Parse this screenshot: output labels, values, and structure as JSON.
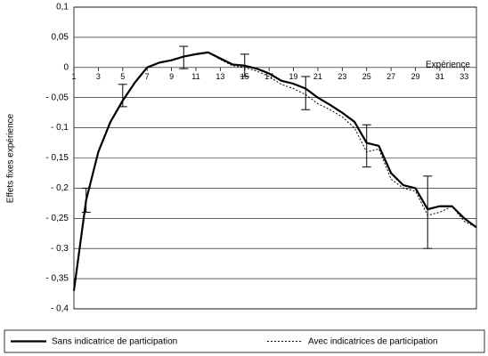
{
  "chart_data": {
    "type": "line",
    "y_label": "Effets fixes expérience",
    "x_label": "Expérience",
    "x": [
      1,
      2,
      3,
      4,
      5,
      6,
      7,
      8,
      9,
      10,
      11,
      12,
      13,
      14,
      15,
      16,
      17,
      18,
      19,
      20,
      21,
      22,
      23,
      24,
      25,
      26,
      27,
      28,
      29,
      30,
      31,
      32,
      33,
      34
    ],
    "series": [
      {
        "name": "Sans indicatrice de participation",
        "color": "#000000",
        "style": "solid",
        "values": [
          -0.37,
          -0.22,
          -0.14,
          -0.09,
          -0.055,
          -0.025,
          0.0,
          0.008,
          0.012,
          0.018,
          0.022,
          0.025,
          0.015,
          0.005,
          0.003,
          -0.002,
          -0.01,
          -0.022,
          -0.027,
          -0.035,
          -0.05,
          -0.062,
          -0.075,
          -0.09,
          -0.125,
          -0.13,
          -0.175,
          -0.195,
          -0.2,
          -0.235,
          -0.23,
          -0.23,
          -0.25,
          -0.265
        ]
      },
      {
        "name": "Avec indicatrices de participation",
        "color": "#000000",
        "style": "dotted",
        "values": [
          -0.37,
          -0.22,
          -0.14,
          -0.09,
          -0.055,
          -0.025,
          0.0,
          0.008,
          0.012,
          0.018,
          0.022,
          0.025,
          0.013,
          0.003,
          0.0,
          -0.006,
          -0.015,
          -0.028,
          -0.035,
          -0.045,
          -0.06,
          -0.07,
          -0.082,
          -0.1,
          -0.14,
          -0.135,
          -0.185,
          -0.2,
          -0.205,
          -0.245,
          -0.24,
          -0.23,
          -0.255,
          -0.265
        ]
      }
    ],
    "intervals": [
      {
        "x": 2,
        "low": -0.24,
        "high": -0.2
      },
      {
        "x": 5,
        "low": -0.065,
        "high": -0.028
      },
      {
        "x": 10,
        "low": -0.002,
        "high": 0.035
      },
      {
        "x": 15,
        "low": -0.015,
        "high": 0.022
      },
      {
        "x": 20,
        "low": -0.07,
        "high": -0.015
      },
      {
        "x": 25,
        "low": -0.165,
        "high": -0.095
      },
      {
        "x": 30,
        "low": -0.3,
        "high": -0.18
      }
    ],
    "xlim": [
      1,
      34
    ],
    "xticks": [
      1,
      3,
      5,
      7,
      9,
      11,
      13,
      15,
      17,
      19,
      21,
      23,
      25,
      27,
      29,
      31,
      33
    ],
    "ylim": [
      -0.4,
      0.1
    ],
    "yticks": [
      {
        "value": 0.1,
        "label": "0,1"
      },
      {
        "value": 0.05,
        "label": "0,05"
      },
      0,
      {
        "value": -0.05,
        "label": "- 0,05"
      },
      {
        "value": -0.1,
        "label": "- 0,1"
      },
      {
        "value": -0.15,
        "label": "- 0,15"
      },
      {
        "value": -0.2,
        "label": "- 0,2"
      },
      {
        "value": -0.25,
        "label": "- 0,25"
      },
      {
        "value": -0.3,
        "label": "- 0,3"
      },
      {
        "value": -0.35,
        "label": "- 0,35"
      },
      {
        "value": -0.4,
        "label": "- 0,4"
      }
    ],
    "grid": true
  }
}
